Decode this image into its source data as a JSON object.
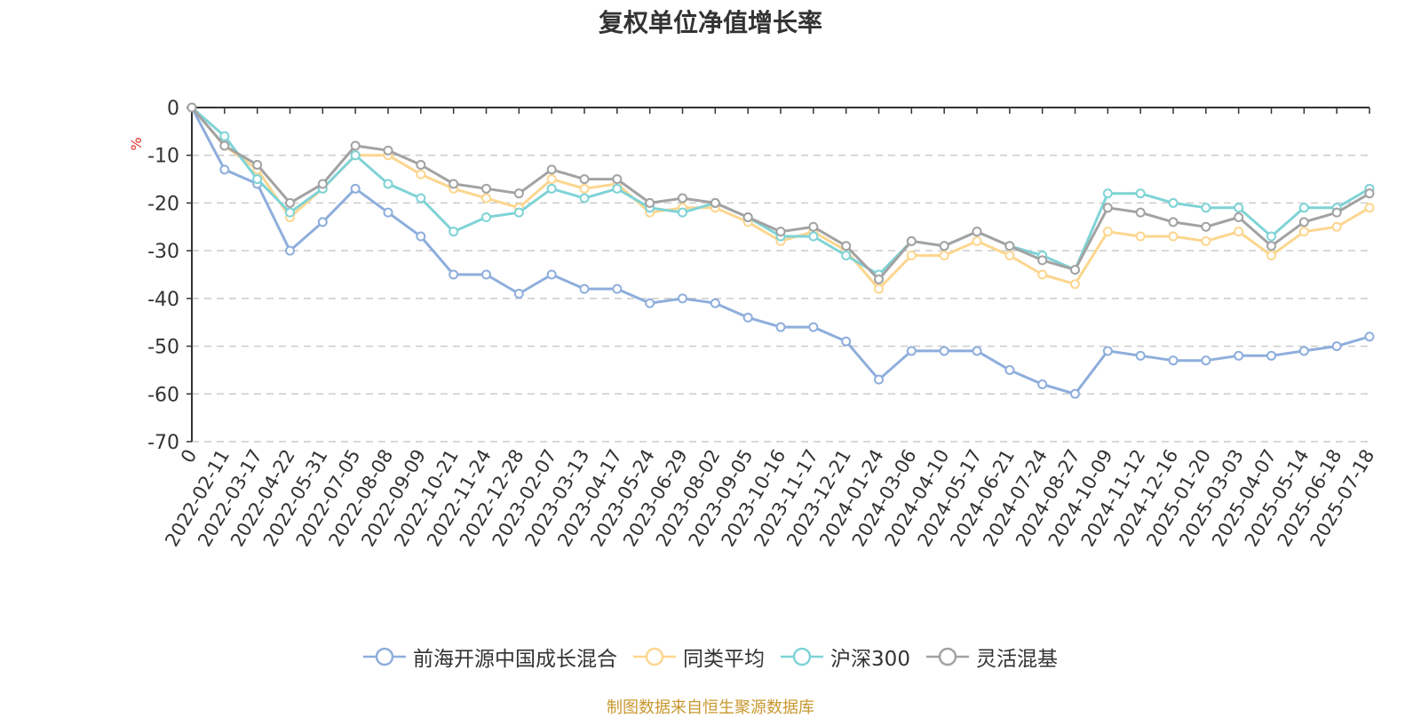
{
  "title": "复权单位净值增长率",
  "source_note": "制图数据来自恒生聚源数据库",
  "chart_data": {
    "type": "line",
    "title": "复权单位净值增长率",
    "ylabel": "%",
    "ylim": [
      -70,
      0
    ],
    "yticks": [
      0,
      -10,
      -20,
      -30,
      -40,
      -50,
      -60,
      -70
    ],
    "grid": true,
    "legend_position": "bottom",
    "x_tick_labels": [
      "0",
      "2022-02-11",
      "2022-03-17",
      "2022-04-22",
      "2022-05-31",
      "2022-07-05",
      "2022-08-08",
      "2022-09-09",
      "2022-10-21",
      "2022-11-24",
      "2022-12-28",
      "2023-02-07",
      "2023-03-13",
      "2023-04-17",
      "2023-05-24",
      "2023-06-29",
      "2023-08-02",
      "2023-09-05",
      "2023-10-16",
      "2023-11-17",
      "2023-12-21",
      "2024-01-24",
      "2024-03-06",
      "2024-04-10",
      "2024-05-17",
      "2024-06-21",
      "2024-07-24",
      "2024-08-27",
      "2024-10-09",
      "2024-11-12",
      "2024-12-16",
      "2025-01-20",
      "2025-03-03",
      "2025-04-07",
      "2025-05-14",
      "2025-06-18",
      "2025-07-18"
    ],
    "series": [
      {
        "name": "前海开源中国成长混合",
        "color": "#8eaedc",
        "values": [
          0,
          -13,
          -16,
          -30,
          -24,
          -17,
          -22,
          -27,
          -35,
          -35,
          -39,
          -35,
          -38,
          -38,
          -41,
          -40,
          -41,
          -44,
          -46,
          -46,
          -49,
          -57,
          -51,
          -51,
          -51,
          -55,
          -58,
          -60,
          -51,
          -52,
          -53,
          -53,
          -52,
          -52,
          -51,
          -50,
          -48
        ]
      },
      {
        "name": "同类平均",
        "color": "#fcd68f",
        "values": [
          0,
          -8,
          -13,
          -23,
          -17,
          -10,
          -10,
          -14,
          -17,
          -19,
          -21,
          -15,
          -17,
          -16,
          -22,
          -21,
          -21,
          -24,
          -28,
          -26,
          -30,
          -38,
          -31,
          -31,
          -28,
          -31,
          -35,
          -37,
          -26,
          -27,
          -27,
          -28,
          -26,
          -31,
          -26,
          -25,
          -21
        ]
      },
      {
        "name": "沪深300",
        "color": "#7fd3d6",
        "values": [
          0,
          -6,
          -15,
          -22,
          -17,
          -10,
          -16,
          -19,
          -26,
          -23,
          -22,
          -17,
          -19,
          -17,
          -21,
          -22,
          -20,
          -23,
          -27,
          -27,
          -31,
          -35,
          -28,
          -29,
          -26,
          -29,
          -31,
          -34,
          -18,
          -18,
          -20,
          -21,
          -21,
          -27,
          -21,
          -21,
          -17
        ]
      },
      {
        "name": "灵活混基",
        "color": "#a2a2a2",
        "values": [
          0,
          -8,
          -12,
          -20,
          -16,
          -8,
          -9,
          -12,
          -16,
          -17,
          -18,
          -13,
          -15,
          -15,
          -20,
          -19,
          -20,
          -23,
          -26,
          -25,
          -29,
          -36,
          -28,
          -29,
          -26,
          -29,
          -32,
          -34,
          -21,
          -22,
          -24,
          -25,
          -23,
          -29,
          -24,
          -22,
          -18
        ]
      }
    ]
  }
}
